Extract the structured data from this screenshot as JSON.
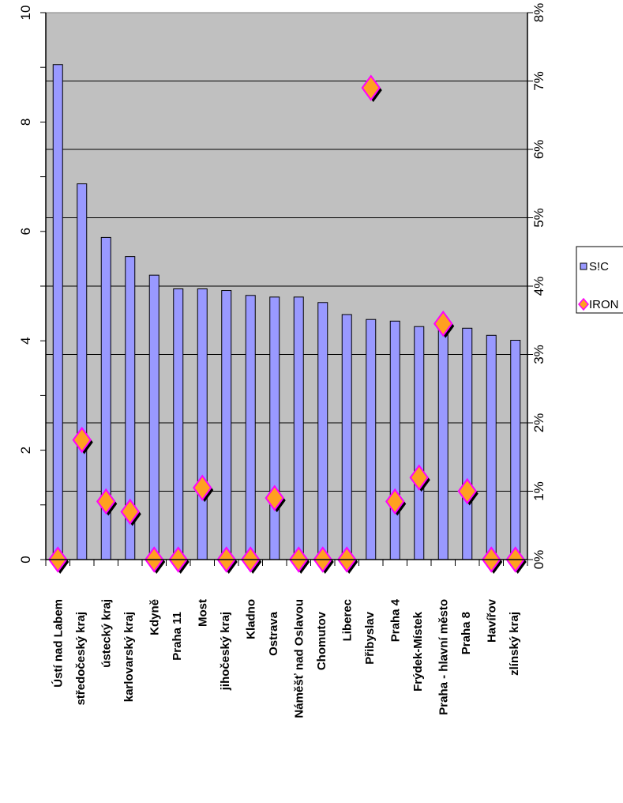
{
  "chart_data": {
    "type": "bar",
    "categories": [
      "Ústí nad Labem",
      "středočeský kraj",
      "ústecký kraj",
      "karlovarský kraj",
      "Kdyně",
      "Praha 11",
      "Most",
      "jihočeský kraj",
      "Kladno",
      "Ostrava",
      "Náměšť nad Oslavou",
      "Chomutov",
      "Liberec",
      "Přibyslav",
      "Praha 4",
      "Frýdek-Místek",
      "Praha - hlavní město",
      "Praha 8",
      "Havířov",
      "zlínský kraj"
    ],
    "series": [
      {
        "name": "S!C",
        "axis": "left",
        "type": "bar",
        "color": "#9999ff",
        "values": [
          9.05,
          6.87,
          5.89,
          5.54,
          5.2,
          4.95,
          4.95,
          4.92,
          4.83,
          4.8,
          4.8,
          4.7,
          4.48,
          4.39,
          4.36,
          4.26,
          4.25,
          4.23,
          4.1,
          4.01
        ]
      },
      {
        "name": "IRON",
        "axis": "right",
        "type": "scatter",
        "marker": "diamond",
        "fill_color": "#ffa020",
        "edge_color": "#ff00ff",
        "values": [
          0.0,
          1.75,
          0.85,
          0.7,
          0.0,
          0.0,
          1.05,
          0.0,
          0.0,
          0.9,
          0.0,
          0.0,
          0.0,
          6.9,
          0.85,
          1.2,
          3.45,
          1.0,
          0.0,
          0.0
        ]
      }
    ],
    "left_axis": {
      "min": 0,
      "max": 10,
      "ticks": [
        "0",
        "2",
        "4",
        "6",
        "8",
        "10"
      ]
    },
    "right_axis": {
      "min": 0,
      "max": 8,
      "ticks": [
        "0%",
        "1%",
        "2%",
        "3%",
        "4%",
        "5%",
        "6%",
        "7%",
        "8%"
      ]
    },
    "grid": true,
    "plot_background": "#c0c0c0",
    "legend": {
      "position": "right",
      "entries": [
        {
          "label": "S!C",
          "symbol": "square-icon"
        },
        {
          "label": "IRON",
          "symbol": "diamond-icon"
        }
      ]
    }
  }
}
